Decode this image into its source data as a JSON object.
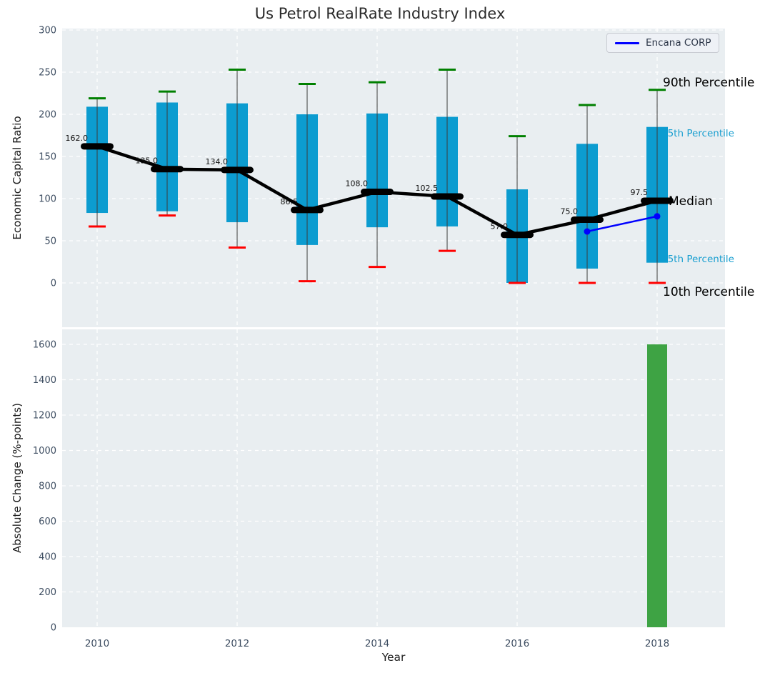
{
  "title": "Us Petrol RealRate Industry Index",
  "legend": {
    "label": "Encana CORP",
    "line_color": "#0000ff"
  },
  "colors": {
    "box": "#0c9cd0",
    "p90_cap": "#008000",
    "p10_cap": "#ff0000",
    "median": "#000000",
    "median_line": "#000000",
    "encana_line": "#0000ff",
    "bar": "#3ea344",
    "plot_bg": "#e9eef1",
    "grid": "#ffffff",
    "tick_label": "#3d4d61",
    "percentile_label_cyan": "#1a9fd0",
    "annotation_text": "#111111",
    "whisker": "#3c3c3c"
  },
  "chart_data": [
    {
      "type": "box-whisker+line",
      "title": "Us Petrol RealRate Industry Index",
      "ylabel": "Economic Capital Ratio",
      "ylim": [
        -52,
        303
      ],
      "yticks": [
        0,
        50,
        100,
        150,
        200,
        250,
        300
      ],
      "xticks": [
        2010,
        2012,
        2014,
        2016,
        2018
      ],
      "grid": true,
      "years": [
        2010,
        2011,
        2012,
        2013,
        2014,
        2015,
        2016,
        2017,
        2018
      ],
      "series": [
        {
          "name": "Median",
          "values": [
            162.0,
            135.0,
            134.0,
            86.5,
            108.0,
            102.5,
            57.0,
            75.0,
            97.5
          ]
        },
        {
          "name": "75th Percentile (box top)",
          "values": [
            209,
            214,
            213,
            200,
            201,
            197,
            111,
            165,
            185
          ]
        },
        {
          "name": "25th Percentile (box bottom)",
          "values": [
            83,
            85,
            72,
            45,
            66,
            67,
            0,
            17,
            24
          ]
        },
        {
          "name": "90th Percentile (green cap)",
          "values": [
            219,
            227,
            253,
            236,
            238,
            253,
            174,
            211,
            229
          ]
        },
        {
          "name": "10th Percentile (red cap)",
          "values": [
            67,
            80,
            42,
            2,
            19,
            38,
            0,
            0,
            0
          ]
        },
        {
          "name": "Encana CORP",
          "x": [
            2017,
            2018
          ],
          "values": [
            61,
            79
          ]
        }
      ],
      "median_labels": [
        "162.0",
        "135.0",
        "134.0",
        "86.5",
        "108.0",
        "102.5",
        "57.0",
        "75.0",
        "97.5"
      ],
      "right_labels": {
        "p90": "90th Percentile",
        "q3": "75th Percentile",
        "median": "Median",
        "q1": "25th Percentile",
        "p10": "10th Percentile"
      },
      "legend_entries": [
        "Encana CORP"
      ],
      "legend_position": "upper right"
    },
    {
      "type": "bar",
      "ylabel": "Absolute Change (%-points)",
      "xlabel": "Year",
      "ylim": [
        0,
        1690
      ],
      "yticks": [
        0,
        200,
        400,
        600,
        800,
        1000,
        1200,
        1400,
        1600
      ],
      "xticks": [
        2010,
        2012,
        2014,
        2016,
        2018
      ],
      "grid": true,
      "categories": [
        2018
      ],
      "values": [
        1600
      ]
    }
  ]
}
